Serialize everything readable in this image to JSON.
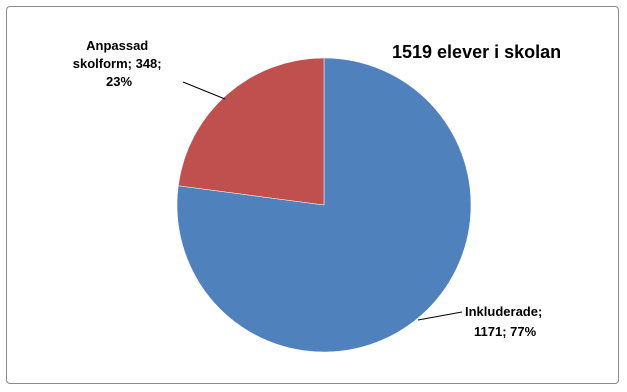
{
  "chart_data": {
    "type": "pie",
    "title": "1519 elever i skolan",
    "categories": [
      "Inkluderade",
      "Anpassad skolform"
    ],
    "values": [
      1171,
      348
    ],
    "percentages": [
      77,
      23
    ],
    "colors": [
      "#4F81BD",
      "#C0504D"
    ],
    "start_angle_deg": 0,
    "direction": "clockwise",
    "legend": "none",
    "labels": [
      {
        "line1": "Inkluderade;",
        "line2": "1171; 77%"
      },
      {
        "line1": "Anpassad",
        "line2": "skolform; 348;",
        "line3": "23%"
      }
    ]
  }
}
